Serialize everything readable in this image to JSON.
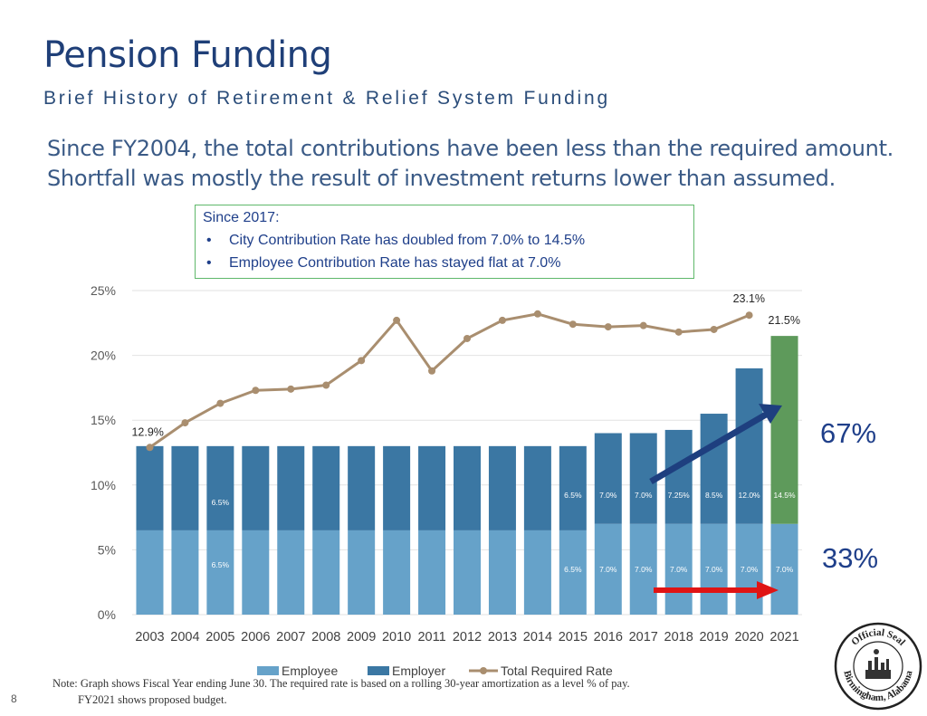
{
  "header": {
    "title": "Pension Funding",
    "subtitle": "Brief History of Retirement & Relief System Funding"
  },
  "summary": {
    "line1": "Since FY2004, the total contributions have been less than the required amount.",
    "line2": "Shortfall was mostly the result of investment returns lower than assumed."
  },
  "callout": {
    "heading": "Since 2017:",
    "bullets": [
      "City Contribution Rate has doubled from 7.0% to 14.5%",
      "Employee Contribution Rate has stayed flat at 7.0%"
    ]
  },
  "annotations": {
    "employer_share": "67%",
    "employee_share": "33%"
  },
  "chart_data": {
    "type": "bar",
    "stacked": true,
    "categories": [
      "2003",
      "2004",
      "2005",
      "2006",
      "2007",
      "2008",
      "2009",
      "2010",
      "2011",
      "2012",
      "2013",
      "2014",
      "2015",
      "2016",
      "2017",
      "2018",
      "2019",
      "2020",
      "2021"
    ],
    "series": [
      {
        "name": "Employee",
        "kind": "bar",
        "values": [
          6.5,
          6.5,
          6.5,
          6.5,
          6.5,
          6.5,
          6.5,
          6.5,
          6.5,
          6.5,
          6.5,
          6.5,
          6.5,
          7.0,
          7.0,
          7.0,
          7.0,
          7.0,
          7.0
        ]
      },
      {
        "name": "Employer",
        "kind": "bar",
        "values": [
          6.5,
          6.5,
          6.5,
          6.5,
          6.5,
          6.5,
          6.5,
          6.5,
          6.5,
          6.5,
          6.5,
          6.5,
          6.5,
          7.0,
          7.0,
          7.25,
          8.5,
          12.0,
          14.5
        ]
      },
      {
        "name": "Total Required Rate",
        "kind": "line",
        "values": [
          12.9,
          14.8,
          16.3,
          17.3,
          17.4,
          17.7,
          19.6,
          22.7,
          18.8,
          21.3,
          22.7,
          23.2,
          22.4,
          22.2,
          22.3,
          21.8,
          22.0,
          23.1,
          null
        ]
      }
    ],
    "ylim": [
      0,
      25
    ],
    "yticks": [
      "0%",
      "5%",
      "10%",
      "15%",
      "20%",
      "25%"
    ],
    "data_labels": [
      {
        "series": "Employee",
        "index": 2,
        "text": "6.5%"
      },
      {
        "series": "Employer",
        "index": 2,
        "text": "6.5%"
      },
      {
        "series": "Employee",
        "index": 12,
        "text": "6.5%"
      },
      {
        "series": "Employer",
        "index": 12,
        "text": "6.5%"
      },
      {
        "series": "Employee",
        "index": 13,
        "text": "7.0%"
      },
      {
        "series": "Employer",
        "index": 13,
        "text": "7.0%"
      },
      {
        "series": "Employee",
        "index": 14,
        "text": "7.0%"
      },
      {
        "series": "Employer",
        "index": 14,
        "text": "7.0%"
      },
      {
        "series": "Employee",
        "index": 15,
        "text": "7.0%"
      },
      {
        "series": "Employer",
        "index": 15,
        "text": "7.25%"
      },
      {
        "series": "Employee",
        "index": 16,
        "text": "7.0%"
      },
      {
        "series": "Employer",
        "index": 16,
        "text": "8.5%"
      },
      {
        "series": "Employee",
        "index": 17,
        "text": "7.0%"
      },
      {
        "series": "Employer",
        "index": 17,
        "text": "12.0%"
      },
      {
        "series": "Employee",
        "index": 18,
        "text": "7.0%"
      },
      {
        "series": "Employer",
        "index": 18,
        "text": "14.5%"
      }
    ],
    "line_labels": [
      {
        "index": 0,
        "text": "12.9%"
      },
      {
        "index": 17,
        "text": "23.1%"
      }
    ],
    "total_label": {
      "index": 18,
      "text": "21.5%"
    },
    "legend": {
      "position": "bottom",
      "entries": [
        "Employee",
        "Employer",
        "Total Required Rate"
      ]
    }
  },
  "colors": {
    "employee": "#66a2c9",
    "employer": "#3b77a3",
    "employer_proposed": "#5e9a5b",
    "line": "#a98e6f",
    "arrow_up": "#1e3f7f",
    "arrow_right": "#e01414",
    "grid": "#e2e2e2"
  },
  "footer": {
    "note_line1": "Note:  Graph shows Fiscal Year ending June 30. The required rate is based on a rolling 30-year amortization as a level % of pay.",
    "note_line2": "FY2021 shows proposed budget.",
    "page_number": "8"
  },
  "seal": {
    "text_top": "Official Seal",
    "text_bottom": "Birmingham, Alabama"
  }
}
